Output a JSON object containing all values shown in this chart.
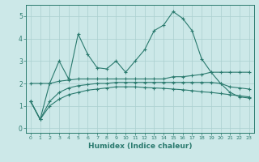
{
  "x": [
    0,
    1,
    2,
    3,
    4,
    5,
    6,
    7,
    8,
    9,
    10,
    11,
    12,
    13,
    14,
    15,
    16,
    17,
    18,
    19,
    20,
    21,
    22,
    23
  ],
  "line1": [
    1.2,
    0.4,
    2.0,
    3.0,
    2.2,
    4.2,
    3.3,
    2.7,
    2.65,
    3.0,
    2.5,
    3.0,
    3.5,
    4.35,
    4.6,
    5.2,
    4.9,
    4.35,
    3.1,
    2.5,
    2.0,
    1.6,
    1.4,
    1.35
  ],
  "line2": [
    2.0,
    2.0,
    2.0,
    2.1,
    2.15,
    2.2,
    2.2,
    2.2,
    2.2,
    2.2,
    2.2,
    2.2,
    2.2,
    2.2,
    2.2,
    2.3,
    2.3,
    2.35,
    2.4,
    2.5,
    2.5,
    2.5,
    2.5,
    2.5
  ],
  "line3": [
    1.2,
    0.4,
    1.2,
    1.6,
    1.8,
    1.9,
    1.95,
    2.0,
    2.0,
    2.05,
    2.05,
    2.05,
    2.05,
    2.05,
    2.05,
    2.05,
    2.05,
    2.05,
    2.05,
    2.05,
    2.0,
    1.85,
    1.8,
    1.75
  ],
  "line4": [
    1.2,
    0.4,
    1.0,
    1.3,
    1.5,
    1.6,
    1.7,
    1.75,
    1.8,
    1.85,
    1.85,
    1.85,
    1.82,
    1.8,
    1.78,
    1.75,
    1.72,
    1.68,
    1.63,
    1.6,
    1.55,
    1.5,
    1.45,
    1.4
  ],
  "color": "#2a7a6e",
  "bg_color": "#cce8e8",
  "grid_color": "#aacfcf",
  "xlabel": "Humidex (Indice chaleur)",
  "xlim": [
    -0.5,
    23.5
  ],
  "ylim": [
    -0.2,
    5.5
  ],
  "yticks": [
    0,
    1,
    2,
    3,
    4,
    5
  ],
  "xticks": [
    0,
    1,
    2,
    3,
    4,
    5,
    6,
    7,
    8,
    9,
    10,
    11,
    12,
    13,
    14,
    15,
    16,
    17,
    18,
    19,
    20,
    21,
    22,
    23
  ]
}
